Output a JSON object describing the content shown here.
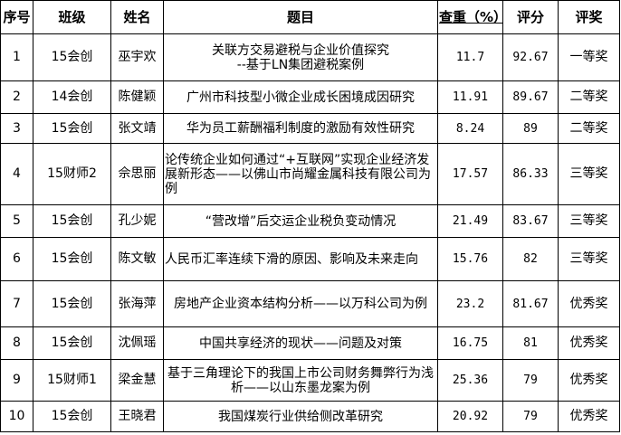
{
  "headers": [
    "序号",
    "班级",
    "姓名",
    "题目",
    "查重（%）",
    "评分",
    "评奖"
  ],
  "rows": [
    {
      "no": "1",
      "class": "15会创",
      "name": "巫宇欢",
      "title": "关联方交易避税与企业价值探究\n--基于LN集团避税案例",
      "dup": "11.7",
      "score": "92.67",
      "award": "一等奖"
    },
    {
      "no": "2",
      "class": "14会创",
      "name": "陈健颖",
      "title": "广州市科技型小微企业成长困境成因研究",
      "dup": "11.91",
      "score": "89.67",
      "award": "二等奖"
    },
    {
      "no": "3",
      "class": "15会创",
      "name": "张文靖",
      "title": "华为员工薪酬福利制度的激励有效性研究",
      "dup": "8.24",
      "score": "89",
      "award": "二等奖"
    },
    {
      "no": "4",
      "class": "15财师2",
      "name": "佘思丽",
      "title": "论传统企业如何通过“+互联网”实现企业经济发展新形态——以佛山市尚耀金属科技有限公司为例",
      "dup": "17.57",
      "score": "86.33",
      "award": "三等奖"
    },
    {
      "no": "5",
      "class": "15会创",
      "name": "孔少妮",
      "title": "“营改增”后交运企业税负变动情况",
      "dup": "21.49",
      "score": "83.67",
      "award": "三等奖"
    },
    {
      "no": "6",
      "class": "15会创",
      "name": "陈文敏",
      "title": "人民币汇率连续下滑的原因、影响及未来走向",
      "dup": "15.76",
      "score": "82",
      "award": "三等奖"
    },
    {
      "no": "7",
      "class": "15会创",
      "name": "张海萍",
      "title": "房地产企业资本结构分析——以万科公司为例",
      "dup": "23.2",
      "score": "81.67",
      "award": "优秀奖"
    },
    {
      "no": "8",
      "class": "15会创",
      "name": "沈佩瑶",
      "title": "中国共享经济的现状——问题及对策",
      "dup": "16.75",
      "score": "81",
      "award": "优秀奖"
    },
    {
      "no": "9",
      "class": "15财师1",
      "name": "梁金慧",
      "title": "基于三角理论下的我国上市公司财务舞弊行为浅析——以山东墨龙案为例",
      "dup": "25.36",
      "score": "79",
      "award": "优秀奖"
    },
    {
      "no": "10",
      "class": "15会创",
      "name": "王晓君",
      "title": "我国煤炭行业供给侧改革研究",
      "dup": "20.92",
      "score": "79",
      "award": "优秀奖"
    }
  ]
}
